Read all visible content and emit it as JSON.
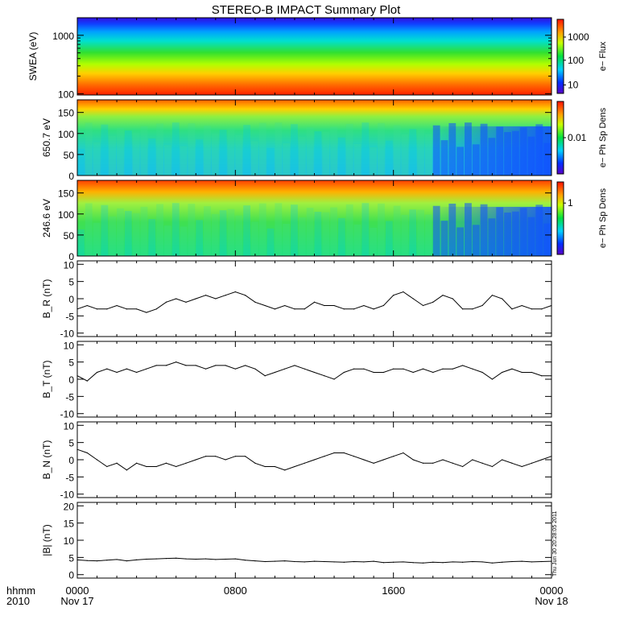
{
  "title": "STEREO-B IMPACT Summary Plot",
  "footer": {
    "left_top": "hhmm",
    "left_bottom": "2010"
  },
  "side_stamp": "Thu Jun 30 20:28:05 2011",
  "x_axis": {
    "ticks": [
      {
        "value": 0,
        "label": "0000",
        "sublabel": "Nov 17"
      },
      {
        "value": 8,
        "label": "0800",
        "sublabel": ""
      },
      {
        "value": 16,
        "label": "1600",
        "sublabel": ""
      },
      {
        "value": 24,
        "label": "0000",
        "sublabel": "Nov 18"
      }
    ],
    "range_hours": [
      0,
      24
    ]
  },
  "colors": {
    "line": "#000000",
    "background": "#ffffff"
  },
  "chart_data": [
    {
      "type": "heatmap",
      "id": "swea",
      "ylabel": "SWEA (eV)",
      "y_scale": "log",
      "ylim": [
        95,
        2000
      ],
      "y_ticks": [
        {
          "value": 100,
          "label": "100"
        },
        {
          "value": 1000,
          "label": "1000"
        }
      ],
      "colorbar": {
        "label": "e− Flux",
        "ticks": [
          "1000",
          "100",
          "10"
        ]
      },
      "description_values": "Flux decreasing with energy from red near 100 eV to blue near 2000 eV"
    },
    {
      "type": "heatmap",
      "id": "pad650",
      "ylabel": "650.7 eV",
      "ylim": [
        0,
        180
      ],
      "y_ticks": [
        {
          "value": 0,
          "label": "0"
        },
        {
          "value": 50,
          "label": "50"
        },
        {
          "value": 100,
          "label": "100"
        },
        {
          "value": 150,
          "label": "150"
        }
      ],
      "colorbar": {
        "label": "e− Ph Sp Dens",
        "ticks": [
          "0.01"
        ]
      }
    },
    {
      "type": "heatmap",
      "id": "pad246",
      "ylabel": "246.6 eV",
      "ylim": [
        0,
        180
      ],
      "y_ticks": [
        {
          "value": 0,
          "label": "0"
        },
        {
          "value": 50,
          "label": "50"
        },
        {
          "value": 100,
          "label": "100"
        },
        {
          "value": 150,
          "label": "150"
        }
      ],
      "colorbar": {
        "label": "e− Ph Sp Dens",
        "ticks": [
          "1"
        ]
      }
    },
    {
      "type": "line",
      "id": "br",
      "ylabel": "B_R (nT)",
      "ylim": [
        -11,
        11
      ],
      "y_ticks": [
        -10,
        -5,
        0,
        5,
        10
      ],
      "x": [
        0,
        0.5,
        1,
        1.5,
        2,
        2.5,
        3,
        3.5,
        4,
        4.5,
        5,
        5.5,
        6,
        6.5,
        7,
        7.5,
        8,
        8.5,
        9,
        9.5,
        10,
        10.5,
        11,
        11.5,
        12,
        12.5,
        13,
        13.5,
        14,
        14.5,
        15,
        15.5,
        16,
        16.5,
        17,
        17.5,
        18,
        18.5,
        19,
        19.5,
        20,
        20.5,
        21,
        21.5,
        22,
        22.5,
        23,
        23.5,
        24
      ],
      "y": [
        -3,
        -2,
        -3,
        -3,
        -2,
        -3,
        -3,
        -4,
        -3,
        -1,
        0,
        -1,
        0,
        1,
        0,
        1,
        2,
        1,
        -1,
        -2,
        -3,
        -2,
        -3,
        -3,
        -1,
        -2,
        -2,
        -3,
        -3,
        -2,
        -3,
        -2,
        1,
        2,
        0,
        -2,
        -1,
        1,
        0,
        -3,
        -3,
        -2,
        1,
        0,
        -3,
        -2,
        -3,
        -3,
        -2
      ]
    },
    {
      "type": "line",
      "id": "bt",
      "ylabel": "B_T (nT)",
      "ylim": [
        -11,
        11
      ],
      "y_ticks": [
        -10,
        -5,
        0,
        5,
        10
      ],
      "x": [
        0,
        0.5,
        1,
        1.5,
        2,
        2.5,
        3,
        3.5,
        4,
        4.5,
        5,
        5.5,
        6,
        6.5,
        7,
        7.5,
        8,
        8.5,
        9,
        9.5,
        10,
        10.5,
        11,
        11.5,
        12,
        12.5,
        13,
        13.5,
        14,
        14.5,
        15,
        15.5,
        16,
        16.5,
        17,
        17.5,
        18,
        18.5,
        19,
        19.5,
        20,
        20.5,
        21,
        21.5,
        22,
        22.5,
        23,
        23.5,
        24
      ],
      "y": [
        1,
        -0.5,
        2,
        3,
        2,
        3,
        2,
        3,
        4,
        4,
        5,
        4,
        4,
        3,
        4,
        4,
        3,
        4,
        3,
        1,
        2,
        3,
        4,
        3,
        2,
        1,
        0,
        2,
        3,
        3,
        2,
        2,
        3,
        3,
        2,
        3,
        2,
        3,
        3,
        4,
        3,
        2,
        0,
        2,
        3,
        2,
        2,
        1,
        1
      ]
    },
    {
      "type": "line",
      "id": "bn",
      "ylabel": "B_N (nT)",
      "ylim": [
        -11,
        11
      ],
      "y_ticks": [
        -10,
        -5,
        0,
        5,
        10
      ],
      "x": [
        0,
        0.5,
        1,
        1.5,
        2,
        2.5,
        3,
        3.5,
        4,
        4.5,
        5,
        5.5,
        6,
        6.5,
        7,
        7.5,
        8,
        8.5,
        9,
        9.5,
        10,
        10.5,
        11,
        11.5,
        12,
        12.5,
        13,
        13.5,
        14,
        14.5,
        15,
        15.5,
        16,
        16.5,
        17,
        17.5,
        18,
        18.5,
        19,
        19.5,
        20,
        20.5,
        21,
        21.5,
        22,
        22.5,
        23,
        23.5,
        24
      ],
      "y": [
        3,
        2,
        0,
        -2,
        -1,
        -3,
        -1,
        -2,
        -2,
        -1,
        -2,
        -1,
        0,
        1,
        1,
        0,
        1,
        1,
        -1,
        -2,
        -2,
        -3,
        -2,
        -1,
        0,
        1,
        2,
        2,
        1,
        0,
        -1,
        0,
        1,
        2,
        0,
        -1,
        -1,
        0,
        -1,
        -2,
        0,
        -1,
        -2,
        0,
        -1,
        -2,
        -1,
        0,
        1
      ]
    },
    {
      "type": "line",
      "id": "bmag",
      "ylabel": "|B| (nT)",
      "ylim": [
        -1,
        21
      ],
      "y_ticks": [
        0,
        5,
        10,
        15,
        20
      ],
      "x": [
        0,
        0.5,
        1,
        1.5,
        2,
        2.5,
        3,
        3.5,
        4,
        4.5,
        5,
        5.5,
        6,
        6.5,
        7,
        7.5,
        8,
        8.5,
        9,
        9.5,
        10,
        10.5,
        11,
        11.5,
        12,
        12.5,
        13,
        13.5,
        14,
        14.5,
        15,
        15.5,
        16,
        16.5,
        17,
        17.5,
        18,
        18.5,
        19,
        19.5,
        20,
        20.5,
        21,
        21.5,
        22,
        22.5,
        23,
        23.5,
        24
      ],
      "y": [
        4.3,
        4.1,
        4,
        4.2,
        4.4,
        4,
        4.3,
        4.5,
        4.6,
        4.7,
        4.8,
        4.6,
        4.5,
        4.6,
        4.4,
        4.5,
        4.6,
        4.2,
        4,
        3.8,
        3.9,
        4,
        3.8,
        3.7,
        3.9,
        3.8,
        3.7,
        3.6,
        3.8,
        3.7,
        3.9,
        3.5,
        3.6,
        3.7,
        3.5,
        3.4,
        3.6,
        3.5,
        3.7,
        3.6,
        3.8,
        3.7,
        3.4,
        3.6,
        3.8,
        3.9,
        3.7,
        3.8,
        3.9
      ]
    }
  ]
}
